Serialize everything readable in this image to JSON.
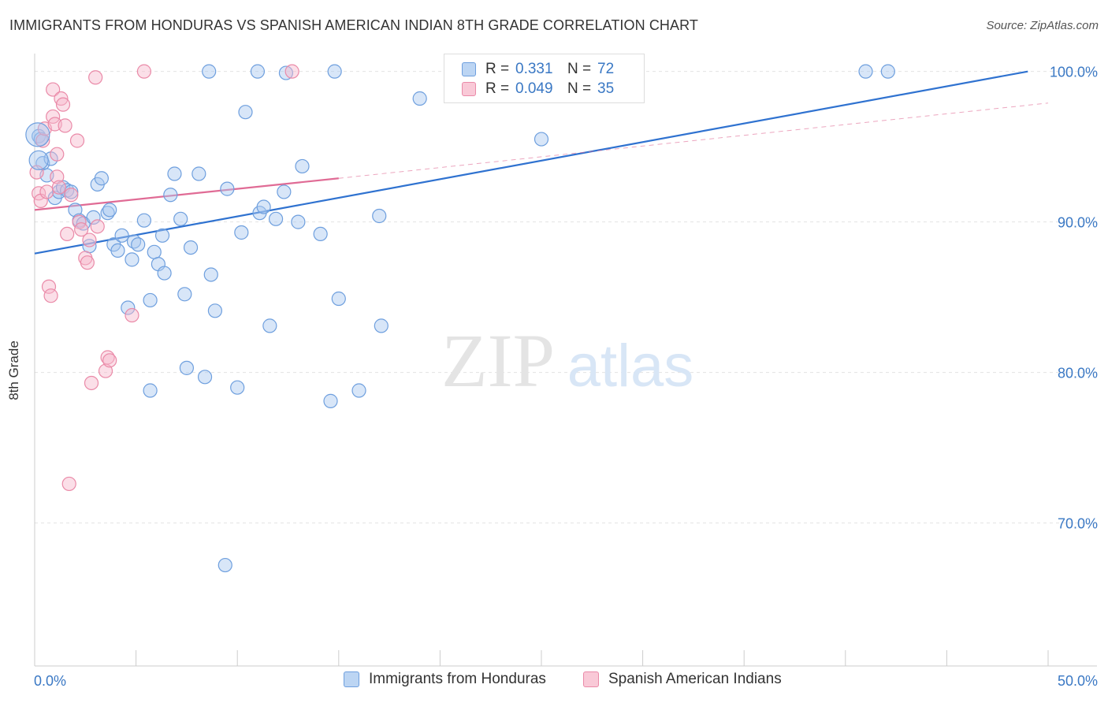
{
  "header": {
    "title": "IMMIGRANTS FROM HONDURAS VS SPANISH AMERICAN INDIAN 8TH GRADE CORRELATION CHART",
    "source": "Source: ZipAtlas.com"
  },
  "watermark": {
    "zip": "ZIP",
    "atlas": "atlas"
  },
  "legend_top": {
    "rows": [
      {
        "r_label": "R =",
        "r_value": "0.331",
        "n_label": "N =",
        "n_value": "72"
      },
      {
        "r_label": "R =",
        "r_value": "0.049",
        "n_label": "N =",
        "n_value": "35"
      }
    ]
  },
  "colors": {
    "blue_fill": "#a9c8ef",
    "blue_stroke": "#6e9fde",
    "blue_line": "#2f72d0",
    "pink_fill": "#f6b9cb",
    "pink_stroke": "#ea8aa8",
    "pink_line": "#e06b95",
    "grid": "#e3e3e3",
    "axis_text": "#3a78c4"
  },
  "chart_data": {
    "type": "scatter",
    "title": "IMMIGRANTS FROM HONDURAS VS SPANISH AMERICAN INDIAN 8TH GRADE CORRELATION CHART",
    "xlabel": "",
    "ylabel": "8th Grade",
    "xlim": [
      0,
      50
    ],
    "ylim": [
      60.5,
      101.5
    ],
    "x_tick_labels": [
      "0.0%",
      "50.0%"
    ],
    "y_ticks": [
      70,
      80,
      90,
      100
    ],
    "y_tick_labels": [
      "70.0%",
      "80.0%",
      "90.0%",
      "100.0%"
    ],
    "grid": true,
    "series": [
      {
        "name": "Immigrants from Honduras",
        "color": "blue",
        "R": 0.331,
        "N": 72,
        "trend": {
          "x0": 0,
          "y0": 87.9,
          "x1": 49.0,
          "y1": 100.0,
          "style": "solid"
        },
        "points": [
          [
            0.2,
            95.7
          ],
          [
            0.3,
            95.5
          ],
          [
            0.4,
            93.9
          ],
          [
            0.6,
            93.1
          ],
          [
            0.8,
            94.2
          ],
          [
            1.0,
            91.6
          ],
          [
            1.2,
            92.0
          ],
          [
            1.4,
            92.3
          ],
          [
            1.6,
            92.1
          ],
          [
            1.8,
            92.0
          ],
          [
            2.0,
            90.8
          ],
          [
            2.2,
            90.1
          ],
          [
            2.4,
            89.9
          ],
          [
            2.7,
            88.4
          ],
          [
            2.9,
            90.3
          ],
          [
            3.1,
            92.5
          ],
          [
            3.3,
            92.9
          ],
          [
            3.6,
            90.6
          ],
          [
            3.7,
            90.8
          ],
          [
            3.9,
            88.5
          ],
          [
            4.1,
            88.1
          ],
          [
            4.3,
            89.1
          ],
          [
            4.6,
            84.3
          ],
          [
            4.8,
            87.5
          ],
          [
            4.9,
            88.7
          ],
          [
            5.1,
            88.5
          ],
          [
            5.4,
            90.1
          ],
          [
            5.7,
            84.8
          ],
          [
            5.9,
            88.0
          ],
          [
            6.1,
            87.2
          ],
          [
            6.3,
            89.1
          ],
          [
            6.4,
            86.6
          ],
          [
            6.7,
            91.8
          ],
          [
            6.9,
            93.2
          ],
          [
            7.2,
            90.2
          ],
          [
            7.4,
            85.2
          ],
          [
            7.7,
            88.3
          ],
          [
            8.1,
            93.2
          ],
          [
            8.4,
            79.7
          ],
          [
            8.7,
            86.5
          ],
          [
            8.9,
            84.1
          ],
          [
            9.5,
            92.2
          ],
          [
            10.0,
            79.0
          ],
          [
            10.2,
            89.3
          ],
          [
            10.4,
            97.3
          ],
          [
            11.0,
            100.0
          ],
          [
            11.1,
            90.6
          ],
          [
            11.3,
            91.0
          ],
          [
            11.6,
            83.1
          ],
          [
            11.9,
            90.2
          ],
          [
            12.3,
            92.0
          ],
          [
            12.4,
            99.9
          ],
          [
            13.0,
            90.0
          ],
          [
            13.2,
            93.7
          ],
          [
            14.1,
            89.2
          ],
          [
            14.6,
            78.1
          ],
          [
            14.8,
            100.0
          ],
          [
            15.0,
            84.9
          ],
          [
            16.0,
            78.8
          ],
          [
            17.0,
            90.4
          ],
          [
            17.1,
            83.1
          ],
          [
            19.0,
            98.2
          ],
          [
            21.2,
            100.0
          ],
          [
            25.0,
            95.5
          ],
          [
            28.0,
            100.0
          ],
          [
            28.3,
            100.0
          ],
          [
            41.0,
            100.0
          ],
          [
            42.1,
            100.0
          ],
          [
            8.6,
            100.0
          ],
          [
            9.4,
            67.2
          ],
          [
            7.5,
            80.3
          ],
          [
            5.7,
            78.8
          ]
        ]
      },
      {
        "name": "Spanish American Indians",
        "color": "pink",
        "R": 0.049,
        "N": 35,
        "trend": {
          "x0": 0,
          "y0": 90.8,
          "x1": 15.0,
          "y1": 92.9,
          "style": "solid",
          "dashed_to": {
            "x1": 50.0,
            "y1": 97.9
          }
        },
        "points": [
          [
            0.1,
            93.3
          ],
          [
            0.2,
            91.9
          ],
          [
            0.3,
            91.4
          ],
          [
            0.4,
            95.4
          ],
          [
            0.5,
            96.2
          ],
          [
            0.6,
            92.0
          ],
          [
            0.7,
            85.7
          ],
          [
            0.8,
            85.1
          ],
          [
            0.9,
            97.0
          ],
          [
            0.9,
            98.8
          ],
          [
            1.0,
            96.5
          ],
          [
            1.1,
            94.5
          ],
          [
            1.1,
            93.0
          ],
          [
            1.2,
            92.3
          ],
          [
            1.3,
            98.2
          ],
          [
            1.4,
            97.8
          ],
          [
            1.5,
            96.4
          ],
          [
            1.6,
            89.2
          ],
          [
            1.7,
            72.6
          ],
          [
            1.8,
            91.8
          ],
          [
            2.1,
            95.4
          ],
          [
            2.2,
            90.0
          ],
          [
            2.3,
            89.5
          ],
          [
            2.5,
            87.6
          ],
          [
            2.6,
            87.3
          ],
          [
            2.7,
            88.8
          ],
          [
            2.8,
            79.3
          ],
          [
            3.0,
            99.6
          ],
          [
            3.1,
            89.7
          ],
          [
            3.5,
            80.1
          ],
          [
            3.6,
            81.0
          ],
          [
            3.7,
            80.8
          ],
          [
            4.8,
            83.8
          ],
          [
            5.4,
            100.0
          ],
          [
            12.7,
            100.0
          ]
        ]
      }
    ]
  },
  "legend_bottom": {
    "items": [
      {
        "label": "Immigrants from Honduras"
      },
      {
        "label": "Spanish American Indians"
      }
    ]
  }
}
